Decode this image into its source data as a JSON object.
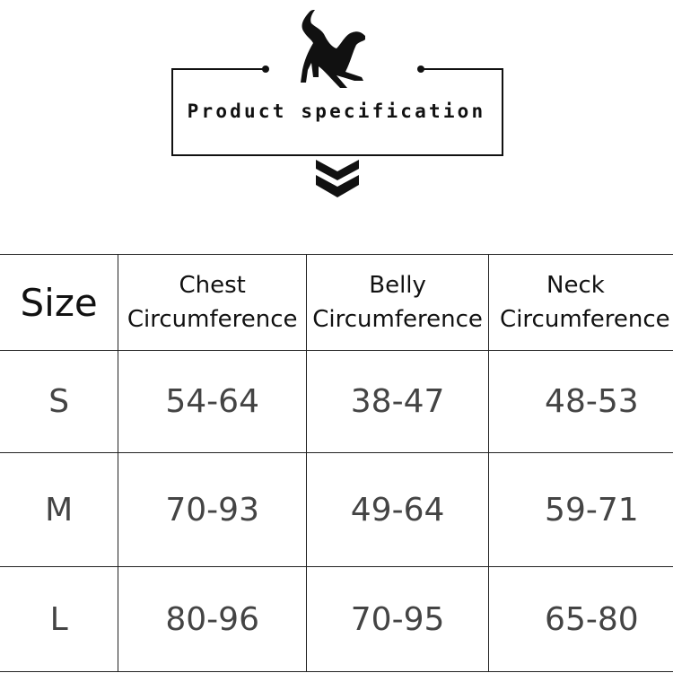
{
  "header": {
    "title": "Product specification",
    "logo": "dog-silhouette",
    "arrow_icon": "double-chevron-down"
  },
  "table": {
    "columns": [
      "Size",
      "Chest Circumference",
      "Belly Circumference",
      "Neck Circumference"
    ],
    "column_lines": [
      [
        "",
        ""
      ],
      [
        "Chest",
        "Circumference"
      ],
      [
        "Belly",
        "Circumference"
      ],
      [
        "Neck",
        "Circumference"
      ]
    ],
    "rows": [
      [
        "S",
        "54-64",
        "38-47",
        "48-53"
      ],
      [
        "M",
        "70-93",
        "49-64",
        "59-71"
      ],
      [
        "L",
        "80-96",
        "70-95",
        "65-80"
      ]
    ]
  }
}
